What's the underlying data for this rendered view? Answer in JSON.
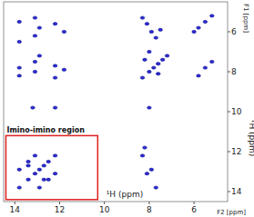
{
  "chart_data": {
    "type": "scatter",
    "xlabel": "¹H (ppm)",
    "ylabel": "¹H (ppm)",
    "x_axis_title": "F2 [ppm]",
    "y_axis_title": "F1 [ppm]",
    "xlim": [
      14.5,
      4.5
    ],
    "ylim": [
      4.5,
      14.5
    ],
    "xticks": [
      14,
      12,
      10,
      8,
      6
    ],
    "yticks": [
      6,
      8,
      10,
      12,
      14
    ],
    "color": "#2a2ad0",
    "marker": "circle",
    "x": [
      13.8,
      13.4,
      13.1,
      12.9,
      12.7,
      12.5,
      12.2,
      8.3,
      8.0,
      7.8,
      7.6,
      7.4,
      7.2,
      6.0,
      5.8,
      5.5,
      5.2,
      13.8,
      12.9,
      13.4,
      12.5,
      13.1,
      12.2,
      12.7,
      13.4,
      13.8,
      13.8,
      13.8,
      13.8,
      13.1,
      13.1,
      13.1,
      13.1,
      12.9,
      12.9,
      12.2,
      12.2,
      12.2,
      11.8,
      11.8,
      8.3,
      8.1,
      7.9,
      7.7,
      7.5,
      8.2,
      7.6,
      8.0,
      8.1,
      7.9,
      8.3,
      7.7,
      8.2,
      13.2,
      12.2,
      8.0,
      5.5,
      5.8,
      5.2
    ],
    "values": [
      13.8,
      13.4,
      13.1,
      12.9,
      12.7,
      12.5,
      12.2,
      8.3,
      8.0,
      7.8,
      7.6,
      7.4,
      7.2,
      6.0,
      5.8,
      5.5,
      5.2,
      12.9,
      13.8,
      12.5,
      13.4,
      12.2,
      13.1,
      13.4,
      12.7,
      5.5,
      6.5,
      7.8,
      8.2,
      5.3,
      6.2,
      7.5,
      8.0,
      5.8,
      7.2,
      5.6,
      7.7,
      8.3,
      6.0,
      7.9,
      5.3,
      5.6,
      6.0,
      6.3,
      5.9,
      7.4,
      8.1,
      7.0,
      13.1,
      12.9,
      12.2,
      13.8,
      11.8,
      9.8,
      9.8,
      9.8,
      7.8,
      8.2,
      7.5
    ],
    "annotations": [
      {
        "text": "Imino-imino region",
        "x": [
          14.4,
          10.3
        ],
        "y": [
          11.2,
          14.4
        ],
        "color": "#e02020"
      }
    ]
  }
}
